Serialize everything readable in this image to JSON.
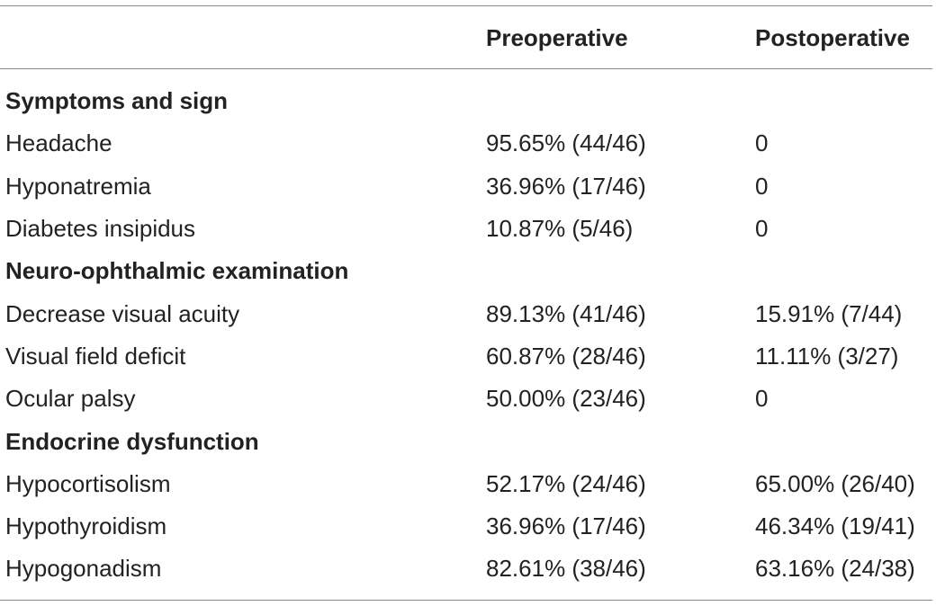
{
  "header": {
    "col1": "",
    "col2": "Preoperative",
    "col3": "Postoperative"
  },
  "sections": [
    {
      "title": "Symptoms and sign",
      "rows": [
        {
          "label": "Headache",
          "pre": "95.65% (44/46)",
          "post": "0"
        },
        {
          "label": "Hyponatremia",
          "pre": "36.96% (17/46)",
          "post": "0"
        },
        {
          "label": "Diabetes insipidus",
          "pre": "10.87% (5/46)",
          "post": "0"
        }
      ]
    },
    {
      "title": "Neuro-ophthalmic examination",
      "rows": [
        {
          "label": "Decrease visual acuity",
          "pre": "89.13% (41/46)",
          "post": "15.91% (7/44)"
        },
        {
          "label": "Visual field deficit",
          "pre": "60.87% (28/46)",
          "post": "11.11% (3/27)"
        },
        {
          "label": "Ocular palsy",
          "pre": "50.00% (23/46)",
          "post": "0"
        }
      ]
    },
    {
      "title": "Endocrine dysfunction",
      "rows": [
        {
          "label": "Hypocortisolism",
          "pre": "52.17% (24/46)",
          "post": "65.00% (26/40)"
        },
        {
          "label": "Hypothyroidism",
          "pre": "36.96% (17/46)",
          "post": "46.34% (19/41)"
        },
        {
          "label": "Hypogonadism",
          "pre": "82.61% (38/46)",
          "post": "63.16% (24/38)"
        }
      ]
    }
  ]
}
